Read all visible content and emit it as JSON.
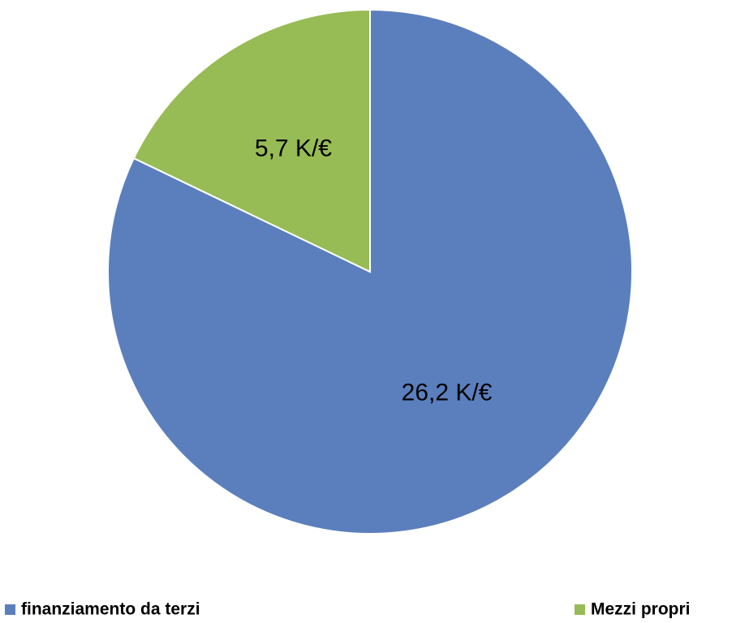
{
  "chart_data": {
    "type": "pie",
    "categories": [
      "finanziamento da terzi",
      "Mezzi propri"
    ],
    "values": [
      26.2,
      5.7
    ],
    "value_labels": [
      "26,2 K/€",
      "5,7 K/€"
    ],
    "colors": [
      "#5b7fbd",
      "#97bb55"
    ],
    "legend": "bottom"
  }
}
